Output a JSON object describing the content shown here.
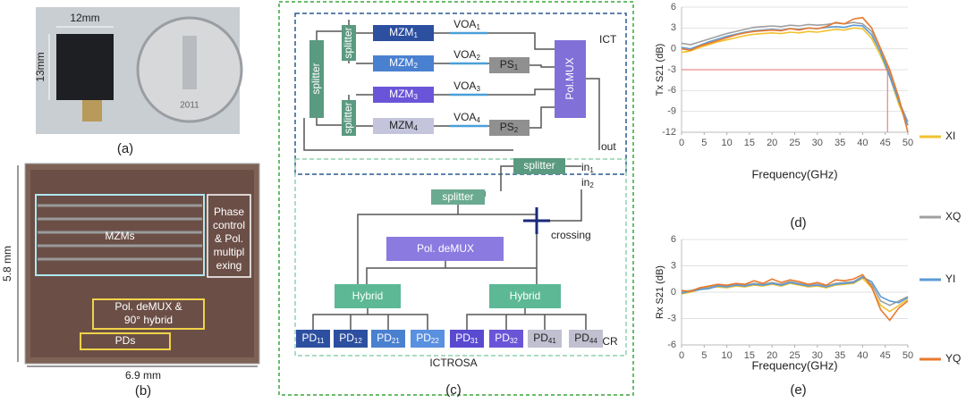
{
  "panels": {
    "a": {
      "label": "(a)",
      "width": "12mm",
      "height": "13mm",
      "coin_year": "2011"
    },
    "b": {
      "label": "(b)",
      "mzms": "MZMs",
      "phase": [
        "Phase",
        "control",
        "& Pol.",
        "multipl",
        "exing"
      ],
      "demux": [
        "Pol. deMUX &",
        "90° hybrid"
      ],
      "pds": "PDs",
      "height": "5.8 mm",
      "width": "6.9 mm"
    },
    "c": {
      "label": "(c)",
      "ict": "ICT",
      "ictrosa": "ICTROSA",
      "icr": "ICR",
      "out": "out",
      "crossing": "crossing",
      "splitters": [
        "splitter",
        "splitter",
        "splitter",
        "splitter",
        "splitter"
      ],
      "mzm": [
        {
          "name": "MZM",
          "sub": "1"
        },
        {
          "name": "MZM",
          "sub": "2"
        },
        {
          "name": "MZM",
          "sub": "3"
        },
        {
          "name": "MZM",
          "sub": "4"
        }
      ],
      "voa": [
        {
          "name": "VOA",
          "sub": "1"
        },
        {
          "name": "VOA",
          "sub": "2"
        },
        {
          "name": "VOA",
          "sub": "3"
        },
        {
          "name": "VOA",
          "sub": "4"
        }
      ],
      "ps": [
        {
          "name": "PS",
          "sub": "1"
        },
        {
          "name": "PS",
          "sub": "2"
        }
      ],
      "pol_mux": "Pol.MUX",
      "pol_demux": "Pol. deMUX",
      "hybrids": [
        "Hybrid",
        "Hybrid"
      ],
      "inputs": [
        {
          "name": "in",
          "sub": "1"
        },
        {
          "name": "in",
          "sub": "2"
        }
      ],
      "pds": [
        {
          "name": "PD",
          "sub": "11"
        },
        {
          "name": "PD",
          "sub": "12"
        },
        {
          "name": "PD",
          "sub": "21"
        },
        {
          "name": "PD",
          "sub": "22"
        },
        {
          "name": "PD",
          "sub": "31"
        },
        {
          "name": "PD",
          "sub": "32"
        },
        {
          "name": "PD",
          "sub": "41"
        },
        {
          "name": "PD",
          "sub": "44"
        }
      ]
    }
  },
  "chart_data": [
    {
      "type": "line",
      "label": "(d)",
      "y_label": "Tx S21 (dB)",
      "x_label": "Frequency(GHz)",
      "grid": true,
      "x": [
        0,
        2,
        4,
        6,
        8,
        10,
        12,
        14,
        16,
        18,
        20,
        22,
        24,
        26,
        28,
        30,
        32,
        34,
        36,
        38,
        40,
        42,
        44,
        46,
        48,
        50
      ],
      "xlim": [
        0,
        50
      ],
      "xticks": [
        0,
        5,
        10,
        15,
        20,
        25,
        30,
        35,
        40,
        45,
        50
      ],
      "ylim": [
        -12,
        6
      ],
      "yticks": [
        6,
        3,
        0,
        -3,
        -6,
        -9,
        -12
      ],
      "reference_lines": {
        "y": -3,
        "x": 45.5,
        "color": "#e07070"
      },
      "series": [
        {
          "name": "XI",
          "color": "#f2c12e",
          "values": [
            -0.5,
            -0.3,
            0.2,
            0.6,
            1.0,
            1.3,
            1.6,
            1.9,
            2.1,
            2.2,
            2.3,
            2.2,
            2.4,
            2.3,
            2.5,
            2.4,
            2.6,
            2.8,
            2.7,
            3.0,
            2.9,
            1.5,
            -1.0,
            -4.0,
            -8.0,
            -11.0
          ]
        },
        {
          "name": "XQ",
          "color": "#a0a0a0",
          "values": [
            0.8,
            0.6,
            1.0,
            1.4,
            1.8,
            2.2,
            2.5,
            2.8,
            3.1,
            3.2,
            3.3,
            3.2,
            3.4,
            3.3,
            3.5,
            3.4,
            3.5,
            3.7,
            3.6,
            3.8,
            3.6,
            2.5,
            0.0,
            -3.5,
            -7.5,
            -10.5
          ]
        },
        {
          "name": "YI",
          "color": "#5b9bd5",
          "values": [
            0.2,
            0.0,
            0.5,
            1.0,
            1.4,
            1.8,
            2.1,
            2.4,
            2.6,
            2.7,
            2.8,
            2.7,
            2.9,
            2.8,
            3.0,
            2.9,
            3.1,
            3.2,
            3.1,
            3.4,
            3.3,
            2.0,
            -0.5,
            -4.0,
            -7.5,
            -11.0
          ]
        },
        {
          "name": "YQ",
          "color": "#e8792f",
          "values": [
            0.0,
            -0.2,
            0.4,
            0.8,
            1.2,
            1.6,
            2.0,
            2.3,
            2.5,
            2.6,
            2.7,
            2.6,
            2.9,
            2.7,
            3.0,
            2.9,
            3.2,
            3.8,
            3.6,
            4.3,
            4.5,
            3.0,
            0.0,
            -3.0,
            -7.0,
            -12.0
          ]
        }
      ]
    },
    {
      "type": "line",
      "label": "(e)",
      "y_label": "Rx S21 (dB)",
      "x_label": "Frequency(GHz)",
      "grid": true,
      "x": [
        0,
        2,
        4,
        6,
        8,
        10,
        12,
        14,
        16,
        18,
        20,
        22,
        24,
        26,
        28,
        30,
        32,
        34,
        36,
        38,
        40,
        42,
        44,
        46,
        48,
        50
      ],
      "xlim": [
        0,
        50
      ],
      "xticks": [
        0,
        5,
        10,
        15,
        20,
        25,
        30,
        35,
        40,
        45,
        50
      ],
      "ylim": [
        -6,
        6
      ],
      "yticks": [
        6,
        3,
        0,
        -3,
        -6
      ],
      "series": [
        {
          "color": "#f2c12e",
          "values": [
            -0.2,
            0.0,
            0.3,
            0.5,
            0.6,
            0.5,
            0.7,
            0.6,
            0.8,
            0.7,
            0.9,
            0.7,
            1.0,
            0.8,
            0.6,
            0.7,
            0.5,
            0.8,
            0.9,
            1.0,
            1.6,
            0.5,
            -1.5,
            -2.2,
            -1.5,
            -0.8
          ]
        },
        {
          "color": "#a0a0a0",
          "values": [
            0.0,
            0.2,
            0.4,
            0.6,
            0.8,
            0.7,
            0.9,
            0.8,
            1.0,
            0.9,
            1.1,
            0.9,
            1.2,
            1.0,
            0.8,
            0.9,
            0.7,
            1.0,
            1.1,
            1.2,
            1.8,
            0.9,
            -1.0,
            -1.5,
            -1.0,
            -0.5
          ]
        },
        {
          "color": "#5b9bd5",
          "values": [
            -0.1,
            0.1,
            0.3,
            0.4,
            0.7,
            0.6,
            0.8,
            0.7,
            0.9,
            0.8,
            1.0,
            0.8,
            1.1,
            0.9,
            0.7,
            0.8,
            0.6,
            0.9,
            1.0,
            1.1,
            1.7,
            1.2,
            -0.5,
            -1.0,
            -1.2,
            -0.6
          ]
        },
        {
          "color": "#e8792f",
          "values": [
            0.2,
            0.1,
            0.5,
            0.7,
            0.9,
            0.8,
            1.0,
            0.9,
            1.3,
            1.0,
            1.5,
            1.1,
            1.4,
            1.2,
            0.9,
            1.1,
            0.8,
            1.4,
            1.3,
            1.5,
            2.0,
            0.6,
            -2.0,
            -3.2,
            -1.8,
            -1.0
          ]
        }
      ]
    }
  ]
}
